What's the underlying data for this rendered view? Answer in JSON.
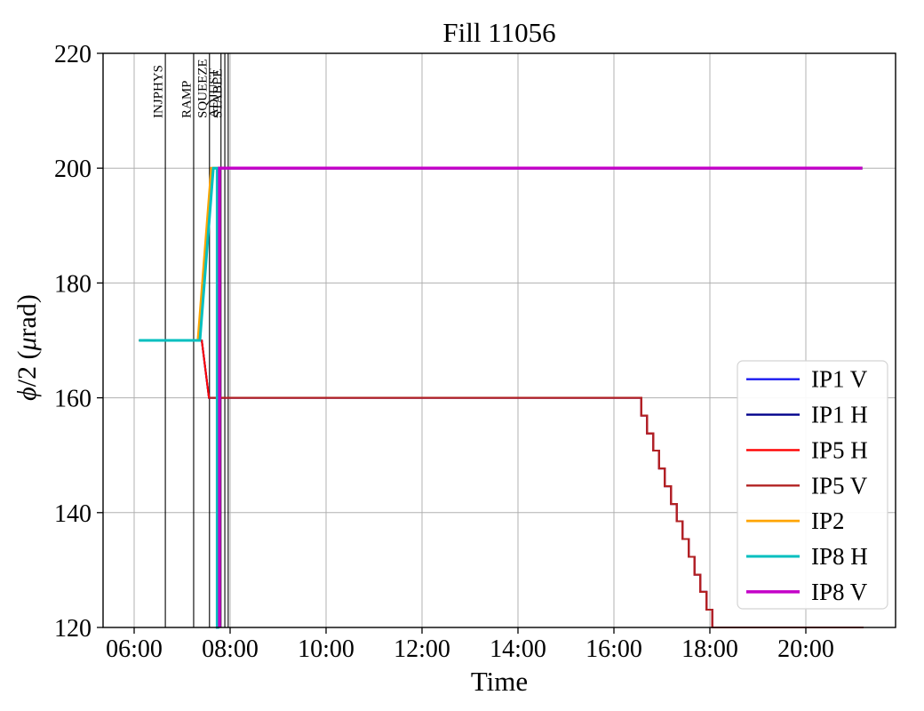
{
  "title": "Fill 11056",
  "chart_data": {
    "type": "line",
    "title": "Fill 11056",
    "xlabel": "Time",
    "ylabel_segments": [
      {
        "text": "ϕ",
        "italic": true
      },
      {
        "text": "/2 (",
        "italic": false
      },
      {
        "text": "μ",
        "italic": true
      },
      {
        "text": "rad)",
        "italic": false
      }
    ],
    "ylabel_plain": "phi/2 (murad)",
    "ylim": [
      120,
      220
    ],
    "yticks": [
      120,
      140,
      160,
      180,
      200,
      220
    ],
    "xlim_hours": [
      5.35,
      21.87
    ],
    "xticks": [
      {
        "hour": 6,
        "label": "06:00"
      },
      {
        "hour": 8,
        "label": "08:00"
      },
      {
        "hour": 10,
        "label": "10:00"
      },
      {
        "hour": 12,
        "label": "12:00"
      },
      {
        "hour": 14,
        "label": "14:00"
      },
      {
        "hour": 16,
        "label": "16:00"
      },
      {
        "hour": 18,
        "label": "18:00"
      },
      {
        "hour": 20,
        "label": "20:00"
      }
    ],
    "grid": true,
    "grid_color": "#b0b0b0",
    "spine_color": "#000000",
    "beam_modes": [
      {
        "label": "INJPHYS",
        "hour": 6.65
      },
      {
        "label": "RAMP",
        "hour": 7.24
      },
      {
        "label": "SQUEEZE",
        "hour": 7.57
      },
      {
        "label": "ADJUST",
        "hour": 7.81
      },
      {
        "label": "STABLE",
        "hour": 7.89
      },
      {
        "label": "",
        "hour": 7.96
      }
    ],
    "legend_position": "lower right",
    "series": [
      {
        "name": "IP1 V",
        "color": "#1a1af0",
        "width": 2.1,
        "points_ref": "IP5 H"
      },
      {
        "name": "IP1 H",
        "color": "#00008b",
        "width": 2.1,
        "points_ref": "IP5 H"
      },
      {
        "name": "IP5 H",
        "color": "#ff0000",
        "width": 2.1,
        "points": [
          [
            6.1,
            170
          ],
          [
            7.41,
            170
          ],
          [
            7.56,
            160
          ],
          [
            16.57,
            160
          ],
          [
            16.57,
            156.9
          ],
          [
            16.69,
            156.9
          ],
          [
            16.69,
            153.8
          ],
          [
            16.82,
            153.8
          ],
          [
            16.82,
            150.8
          ],
          [
            16.94,
            150.8
          ],
          [
            16.94,
            147.7
          ],
          [
            17.06,
            147.7
          ],
          [
            17.06,
            144.6
          ],
          [
            17.19,
            144.6
          ],
          [
            17.19,
            141.5
          ],
          [
            17.31,
            141.5
          ],
          [
            17.31,
            138.5
          ],
          [
            17.43,
            138.5
          ],
          [
            17.43,
            135.4
          ],
          [
            17.56,
            135.4
          ],
          [
            17.56,
            132.3
          ],
          [
            17.68,
            132.3
          ],
          [
            17.68,
            129.2
          ],
          [
            17.8,
            129.2
          ],
          [
            17.8,
            126.2
          ],
          [
            17.93,
            126.2
          ],
          [
            17.93,
            123.1
          ],
          [
            18.05,
            123.1
          ],
          [
            18.05,
            120
          ],
          [
            21.2,
            120
          ]
        ]
      },
      {
        "name": "IP5 V",
        "color": "#b22222",
        "width": 2.1,
        "points": [
          [
            7.56,
            160
          ],
          [
            16.57,
            160
          ],
          [
            16.57,
            156.9
          ],
          [
            16.69,
            156.9
          ],
          [
            16.69,
            153.8
          ],
          [
            16.82,
            153.8
          ],
          [
            16.82,
            150.8
          ],
          [
            16.94,
            150.8
          ],
          [
            16.94,
            147.7
          ],
          [
            17.06,
            147.7
          ],
          [
            17.06,
            144.6
          ],
          [
            17.19,
            144.6
          ],
          [
            17.19,
            141.5
          ],
          [
            17.31,
            141.5
          ],
          [
            17.31,
            138.5
          ],
          [
            17.43,
            138.5
          ],
          [
            17.43,
            135.4
          ],
          [
            17.56,
            135.4
          ],
          [
            17.56,
            132.3
          ],
          [
            17.68,
            132.3
          ],
          [
            17.68,
            129.2
          ],
          [
            17.8,
            129.2
          ],
          [
            17.8,
            126.2
          ],
          [
            17.93,
            126.2
          ],
          [
            17.93,
            123.1
          ],
          [
            18.05,
            123.1
          ],
          [
            18.05,
            120
          ],
          [
            21.2,
            120
          ]
        ]
      },
      {
        "name": "IP2",
        "color": "#ffa500",
        "width": 2.8,
        "points": [
          [
            6.1,
            170
          ],
          [
            7.33,
            170
          ],
          [
            7.61,
            200
          ],
          [
            21.18,
            200
          ]
        ]
      },
      {
        "name": "IP8 H",
        "color": "#00bfbf",
        "width": 3.0,
        "points": [
          [
            6.1,
            170
          ],
          [
            7.37,
            170
          ],
          [
            7.65,
            200
          ],
          [
            7.73,
            200
          ],
          [
            7.73,
            120
          ],
          [
            7.745,
            120
          ],
          [
            7.745,
            200
          ],
          [
            21.18,
            200
          ]
        ]
      },
      {
        "name": "IP8 V",
        "color": "#c400c8",
        "width": 3.4,
        "points": [
          [
            7.78,
            120
          ],
          [
            7.78,
            200
          ],
          [
            21.18,
            200
          ]
        ]
      }
    ]
  }
}
